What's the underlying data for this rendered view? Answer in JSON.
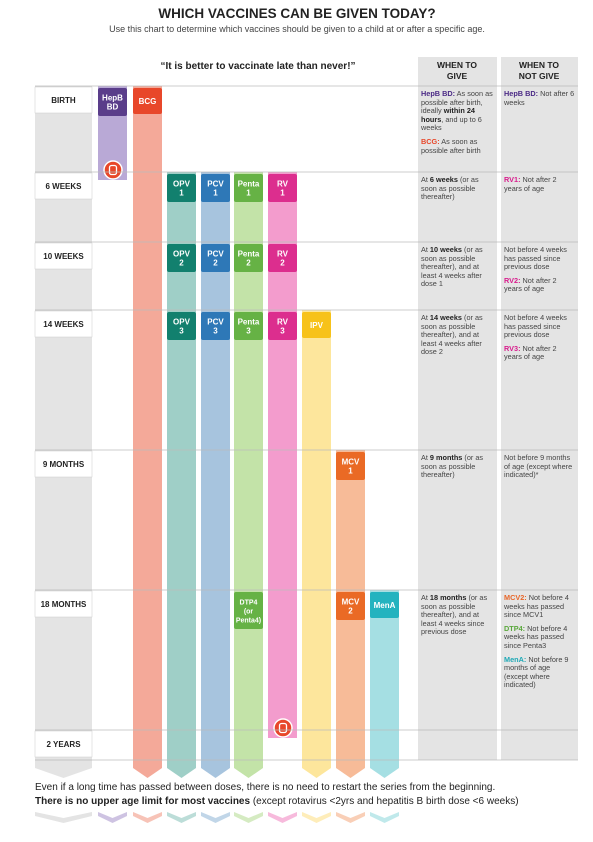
{
  "title": "WHICH VACCINES CAN BE GIVEN TODAY?",
  "subtitle": "Use this chart to determine which vaccines should be given to a child at or after a specific age.",
  "quote": "“It is better to vaccinate late than never!”",
  "headers": {
    "give": [
      "WHEN TO",
      "GIVE"
    ],
    "not_give": [
      "WHEN TO",
      "NOT GIVE"
    ]
  },
  "ages": [
    "BIRTH",
    "6 WEEKS",
    "10 WEEKS",
    "14 WEEKS",
    "9 MONTHS",
    "18 MONTHS",
    "2 YEARS"
  ],
  "badges": {
    "hepb": [
      "HepB",
      "BD"
    ],
    "bcg": [
      "BCG"
    ],
    "opv1": [
      "OPV",
      "1"
    ],
    "pcv1": [
      "PCV",
      "1"
    ],
    "penta1": [
      "Penta",
      "1"
    ],
    "rv1": [
      "RV",
      "1"
    ],
    "opv2": [
      "OPV",
      "2"
    ],
    "pcv2": [
      "PCV",
      "2"
    ],
    "penta2": [
      "Penta",
      "2"
    ],
    "rv2": [
      "RV",
      "2"
    ],
    "opv3": [
      "OPV",
      "3"
    ],
    "pcv3": [
      "PCV",
      "3"
    ],
    "penta3": [
      "Penta",
      "3"
    ],
    "rv3": [
      "RV",
      "3"
    ],
    "ipv": [
      "IPV"
    ],
    "mcv1": [
      "MCV",
      "1"
    ],
    "dtp4": [
      "DTP4",
      "(or",
      "Penta4)"
    ],
    "mcv2": [
      "MCV",
      "2"
    ],
    "mena": [
      "MenA"
    ]
  },
  "give": [
    [
      [
        {
          "label": "HepB BD:",
          "color": "#4b2a86"
        },
        {
          "text": " As soon as possible after birth, ideally "
        },
        {
          "bold": "within 24 hours"
        },
        {
          "text": ", and up to 6 weeks"
        }
      ],
      [
        {
          "label": "BCG:",
          "color": "#e8472a"
        },
        {
          "text": " As soon as possible after birth"
        }
      ]
    ],
    [
      [
        {
          "text": "At "
        },
        {
          "bold": "6 weeks"
        },
        {
          "text": " (or as soon as possible thereafter)"
        }
      ]
    ],
    [
      [
        {
          "text": "At "
        },
        {
          "bold": "10 weeks"
        },
        {
          "text": " (or as soon as possible thereafter), and at least 4 weeks after dose 1"
        }
      ]
    ],
    [
      [
        {
          "text": "At "
        },
        {
          "bold": "14 weeks"
        },
        {
          "text": " (or as soon as possible thereafter), and at least 4 weeks after dose 2"
        }
      ]
    ],
    [
      [
        {
          "text": "At "
        },
        {
          "bold": "9 months"
        },
        {
          "text": " (or as soon as possible thereafter)"
        }
      ]
    ],
    [
      [
        {
          "text": "At "
        },
        {
          "bold": "18 months"
        },
        {
          "text": " (or as soon as possible thereafter), and at least 4 weeks since previous dose"
        }
      ]
    ]
  ],
  "not_give": [
    [
      [
        {
          "label": "HepB BD:",
          "color": "#4b2a86"
        },
        {
          "text": " Not after 6 weeks"
        }
      ]
    ],
    [
      [
        {
          "label": "RV1:",
          "color": "#d81b8c"
        },
        {
          "text": " Not after 2 years of age"
        }
      ]
    ],
    [
      [
        {
          "text": "Not before 4 weeks has passed since previous dose"
        }
      ],
      [
        {
          "label": "RV2:",
          "color": "#d81b8c"
        },
        {
          "text": " Not after 2 years of age"
        }
      ]
    ],
    [
      [
        {
          "text": "Not before 4 weeks has passed since previous dose"
        }
      ],
      [
        {
          "label": "RV3:",
          "color": "#d81b8c"
        },
        {
          "text": " Not after 2 years of age"
        }
      ]
    ],
    [
      [
        {
          "text": "Not before 9 months of age (except where indicated)*"
        }
      ]
    ],
    [
      [
        {
          "label": "MCV2:",
          "color": "#e8672a"
        },
        {
          "text": " Not before 4 weeks has passed since MCV1"
        }
      ],
      [
        {
          "label": "DTP4:",
          "color": "#5aa83c"
        },
        {
          "text": " Not before 4 weeks has passed since Penta3"
        }
      ],
      [
        {
          "label": "MenA:",
          "color": "#1fa9b6"
        },
        {
          "text": " Not before 9 months of age (except where indicated)"
        }
      ]
    ]
  ],
  "footer": {
    "line1": "Even if a long time has passed between doses, there is no need to restart the series from the beginning.",
    "line2_bold": "There is no upper age limit for most vaccines",
    "line2": " (except rotavirus <2yrs and hepatitis B birth dose <6 weeks)"
  }
}
